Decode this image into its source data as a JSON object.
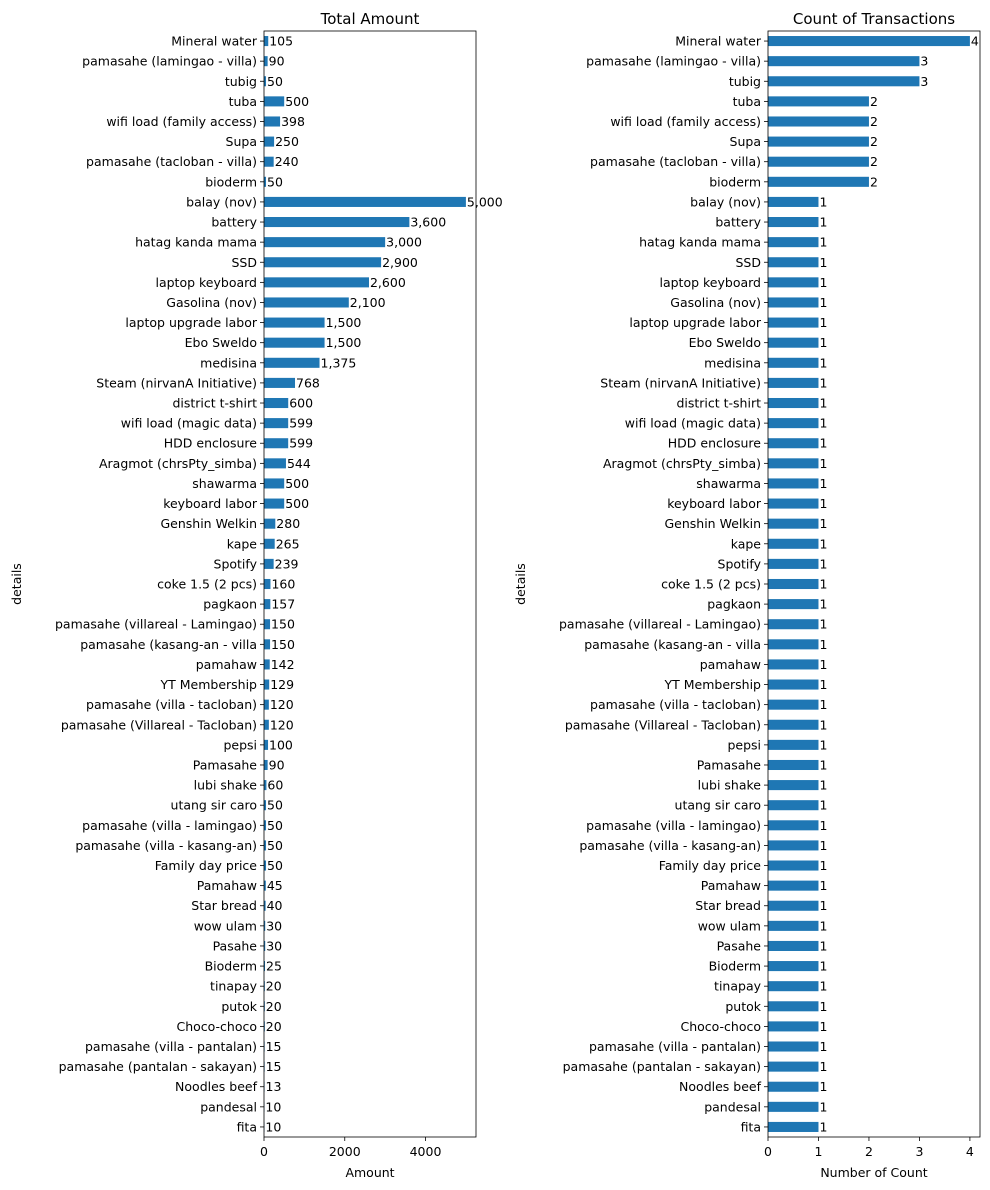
{
  "chart_data": [
    {
      "type": "bar",
      "orientation": "horizontal",
      "title": "Total Amount",
      "xlabel": "Amount",
      "ylabel": "details",
      "xlim": [
        0,
        5250
      ],
      "xticks": [
        0,
        2000,
        4000
      ],
      "xtick_labels": [
        "0",
        "2000",
        "4000"
      ],
      "color": "#1f77b4",
      "grid": false,
      "categories": [
        "Mineral water",
        "pamasahe (lamingao - villa)",
        "tubig",
        "tuba",
        "wifi load (family access)",
        "Supa",
        "pamasahe (tacloban - villa)",
        "bioderm",
        "balay (nov)",
        "battery ",
        "hatag kanda mama",
        "SSD",
        "laptop keyboard",
        "Gasolina (nov)",
        "laptop upgrade labor",
        "Ebo Sweldo",
        "medisina",
        "Steam (nirvanA Initiative)",
        "district t-shirt",
        "wifi load (magic data)",
        "HDD enclosure ",
        "Aragmot (chrsPty_simba)",
        "shawarma",
        "keyboard labor",
        "Genshin Welkin",
        "kape",
        "Spotify",
        "coke 1.5 (2 pcs)",
        "pagkaon",
        "pamasahe (villareal - Lamingao)",
        "pamasahe (kasang-an - villa",
        "pamahaw",
        "YT Membership",
        "pamasahe (villa - tacloban)",
        "pamasahe (Villareal - Tacloban)",
        "pepsi",
        "Pamasahe",
        "lubi shake",
        "utang sir caro",
        "pamasahe (villa - lamingao)",
        "pamasahe (villa - kasang-an)",
        "Family day price",
        "Pamahaw",
        "Star bread",
        "wow ulam",
        "Pasahe",
        "Bioderm",
        "tinapay",
        "putok",
        "Choco-choco",
        "pamasahe (villa - pantalan)",
        "pamasahe (pantalan - sakayan)",
        "Noodles beef",
        "pandesal",
        "fita"
      ],
      "values": [
        105,
        90,
        50,
        500,
        398,
        250,
        240,
        50,
        5000,
        3600,
        3000,
        2900,
        2600,
        2100,
        1500,
        1500,
        1375,
        768,
        600,
        599,
        599,
        544,
        500,
        500,
        280,
        265,
        239,
        160,
        157,
        150,
        150,
        142,
        129,
        120,
        120,
        100,
        90,
        60,
        50,
        50,
        50,
        50,
        45,
        40,
        30,
        30,
        25,
        20,
        20,
        20,
        15,
        15,
        13,
        10,
        10
      ],
      "data_labels": [
        "105",
        "90",
        "50",
        "500",
        "398",
        "250",
        "240",
        "50",
        "5,000",
        "3,600",
        "3,000",
        "2,900",
        "2,600",
        "2,100",
        "1,500",
        "1,500",
        "1,375",
        "768",
        "600",
        "599",
        "599",
        "544",
        "500",
        "500",
        "280",
        "265",
        "239",
        "160",
        "157",
        "150",
        "150",
        "142",
        "129",
        "120",
        "120",
        "100",
        "90",
        "60",
        "50",
        "50",
        "50",
        "50",
        "45",
        "40",
        "30",
        "30",
        "25",
        "20",
        "20",
        "20",
        "15",
        "15",
        "13",
        "10",
        "10"
      ]
    },
    {
      "type": "bar",
      "orientation": "horizontal",
      "title": "Count of Transactions",
      "xlabel": "Number of Count",
      "ylabel": "details",
      "xlim": [
        0,
        4.2
      ],
      "xticks": [
        0,
        1,
        2,
        3,
        4
      ],
      "xtick_labels": [
        "0",
        "1",
        "2",
        "3",
        "4"
      ],
      "color": "#1f77b4",
      "grid": false,
      "categories": [
        "Mineral water",
        "pamasahe (lamingao - villa)",
        "tubig",
        "tuba",
        "wifi load (family access)",
        "Supa",
        "pamasahe (tacloban - villa)",
        "bioderm",
        "balay (nov)",
        "battery ",
        "hatag kanda mama",
        "SSD",
        "laptop keyboard",
        "Gasolina (nov)",
        "laptop upgrade labor",
        "Ebo Sweldo",
        "medisina",
        "Steam (nirvanA Initiative)",
        "district t-shirt",
        "wifi load (magic data)",
        "HDD enclosure ",
        "Aragmot (chrsPty_simba)",
        "shawarma",
        "keyboard labor",
        "Genshin Welkin",
        "kape",
        "Spotify",
        "coke 1.5 (2 pcs)",
        "pagkaon",
        "pamasahe (villareal - Lamingao)",
        "pamasahe (kasang-an - villa",
        "pamahaw",
        "YT Membership",
        "pamasahe (villa - tacloban)",
        "pamasahe (Villareal - Tacloban)",
        "pepsi",
        "Pamasahe",
        "lubi shake",
        "utang sir caro",
        "pamasahe (villa - lamingao)",
        "pamasahe (villa - kasang-an)",
        "Family day price",
        "Pamahaw",
        "Star bread",
        "wow ulam",
        "Pasahe",
        "Bioderm",
        "tinapay",
        "putok",
        "Choco-choco",
        "pamasahe (villa - pantalan)",
        "pamasahe (pantalan - sakayan)",
        "Noodles beef",
        "pandesal",
        "fita"
      ],
      "values": [
        4,
        3,
        3,
        2,
        2,
        2,
        2,
        2,
        1,
        1,
        1,
        1,
        1,
        1,
        1,
        1,
        1,
        1,
        1,
        1,
        1,
        1,
        1,
        1,
        1,
        1,
        1,
        1,
        1,
        1,
        1,
        1,
        1,
        1,
        1,
        1,
        1,
        1,
        1,
        1,
        1,
        1,
        1,
        1,
        1,
        1,
        1,
        1,
        1,
        1,
        1,
        1,
        1,
        1,
        1
      ],
      "data_labels": [
        "4",
        "3",
        "3",
        "2",
        "2",
        "2",
        "2",
        "2",
        "1",
        "1",
        "1",
        "1",
        "1",
        "1",
        "1",
        "1",
        "1",
        "1",
        "1",
        "1",
        "1",
        "1",
        "1",
        "1",
        "1",
        "1",
        "1",
        "1",
        "1",
        "1",
        "1",
        "1",
        "1",
        "1",
        "1",
        "1",
        "1",
        "1",
        "1",
        "1",
        "1",
        "1",
        "1",
        "1",
        "1",
        "1",
        "1",
        "1",
        "1",
        "1",
        "1",
        "1",
        "1",
        "1",
        "1"
      ]
    }
  ]
}
